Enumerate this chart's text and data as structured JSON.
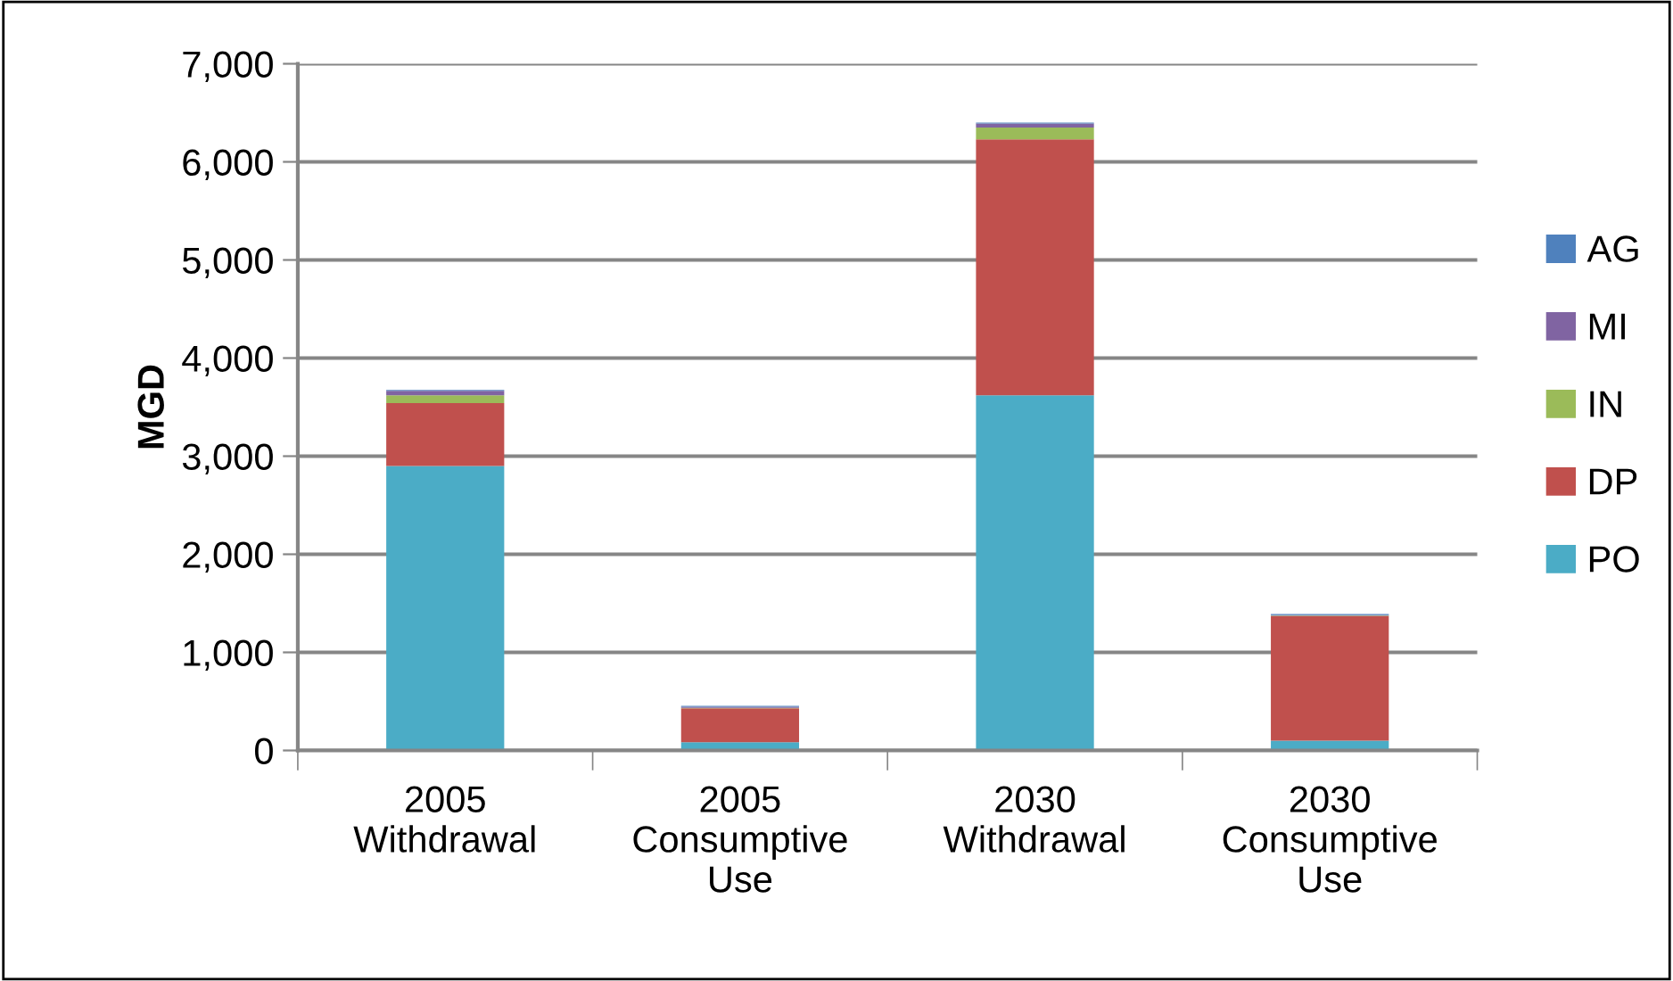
{
  "chart_data": {
    "type": "bar",
    "stacked": true,
    "ylabel": "MGD",
    "categories": [
      "2005\nWithdrawal",
      "2005\nConsumptive\nUse",
      "2030\nWithdrawal",
      "2030\nConsumptive\nUse"
    ],
    "series": [
      {
        "name": "PO",
        "color": "#4bacc6",
        "values": [
          2900,
          85,
          3620,
          100
        ]
      },
      {
        "name": "DP",
        "color": "#c0504d",
        "values": [
          640,
          345,
          2610,
          1270
        ]
      },
      {
        "name": "IN",
        "color": "#9bbb59",
        "values": [
          80,
          5,
          120,
          5
        ]
      },
      {
        "name": "MI",
        "color": "#8064a2",
        "values": [
          45,
          10,
          40,
          5
        ]
      },
      {
        "name": "AG",
        "color": "#4f81bd",
        "values": [
          10,
          10,
          10,
          10
        ]
      }
    ],
    "ylim": [
      0,
      7000
    ],
    "yticks": [
      {
        "value": 0,
        "label": "0"
      },
      {
        "value": 1000,
        "label": "1,000"
      },
      {
        "value": 2000,
        "label": "2,000"
      },
      {
        "value": 3000,
        "label": "3,000"
      },
      {
        "value": 4000,
        "label": "4,000"
      },
      {
        "value": 5000,
        "label": "5,000"
      },
      {
        "value": 6000,
        "label": "6,000"
      },
      {
        "value": 7000,
        "label": "7,000"
      }
    ],
    "grid": "y",
    "legend": "right"
  }
}
